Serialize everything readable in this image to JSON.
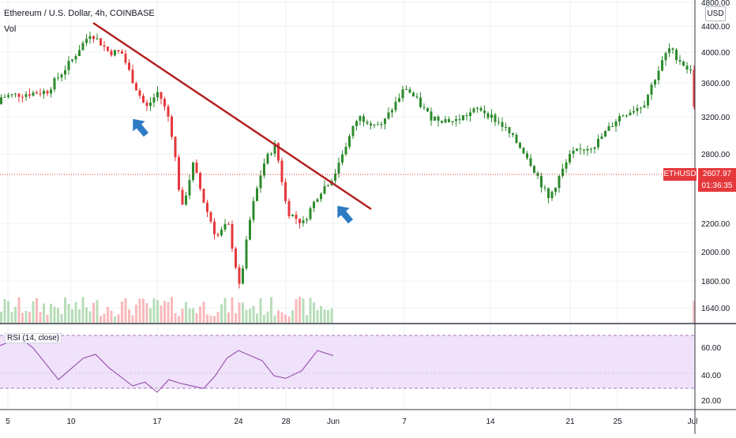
{
  "header": {
    "title": "Ethereum / U.S. Dollar, 4h, COINBASE",
    "volume_label": "Vol",
    "currency": "USD"
  },
  "price_tag": {
    "symbol": "ETHUSD",
    "price": "2607.97",
    "countdown": "01:36:35"
  },
  "rsi": {
    "label": "RSI (14, close)",
    "ticks": [
      "60.00",
      "40.00",
      "20.00"
    ]
  },
  "colors": {
    "up": "#2e8b2e",
    "down": "#e5383b",
    "trendline": "#b22222",
    "arrow": "#2e7bc4",
    "rsi_line": "#8e3fa3",
    "rsi_band": "#efe2fa"
  },
  "chart_data": [
    {
      "type": "candlestick",
      "title": "Ethereum / U.S. Dollar, 4h, COINBASE",
      "x_tick_labels": [
        "5",
        "10",
        "17",
        "24",
        "28",
        "Jun",
        "7",
        "14",
        "21",
        "25",
        "Jul"
      ],
      "y_tick_labels": [
        "4800.00",
        "4400.00",
        "4000.00",
        "3600.00",
        "3200.00",
        "2800.00",
        "2200.00",
        "2000.00",
        "1800.00",
        "1640.00"
      ],
      "series": [
        {
          "values": [
            [
              0,
              3350
            ],
            [
              5,
              3450
            ],
            [
              8,
              3500
            ],
            [
              10,
              3900
            ],
            [
              11.5,
              4300
            ],
            [
              13,
              4000
            ],
            [
              14,
              4000
            ],
            [
              15,
              3600
            ],
            [
              16,
              3300
            ],
            [
              17,
              3500
            ],
            [
              18,
              3150
            ],
            [
              19,
              2300
            ],
            [
              20,
              2700
            ],
            [
              21,
              2350
            ],
            [
              22,
              2100
            ],
            [
              23,
              2200
            ],
            [
              24,
              1750
            ],
            [
              25,
              2300
            ],
            [
              26,
              2700
            ],
            [
              27,
              2900
            ],
            [
              28,
              2300
            ],
            [
              29,
              2200
            ],
            [
              30,
              2450
            ],
            [
              31,
              2607.97
            ],
            [
              33,
              3200
            ],
            [
              35,
              3100
            ],
            [
              37,
              3550
            ],
            [
              39,
              3200
            ],
            [
              41,
              3150
            ],
            [
              43,
              3300
            ],
            [
              45,
              3100
            ],
            [
              47,
              2800
            ],
            [
              49,
              2400
            ],
            [
              51,
              2800
            ],
            [
              53,
              2900
            ],
            [
              55,
              3200
            ],
            [
              57,
              3350
            ],
            [
              59,
              4050
            ],
            [
              61,
              3700
            ],
            [
              63,
              4050
            ],
            [
              64.5,
              3500
            ]
          ]
        }
      ],
      "annotations": [
        "trendline",
        "arrow",
        "arrow"
      ]
    },
    {
      "type": "line",
      "title": "RSI (14, close)",
      "y_tick_labels": [
        "60.00",
        "40.00",
        "20.00"
      ],
      "series": [
        {
          "values": [
            [
              0,
              58
            ],
            [
              4,
              62
            ],
            [
              6,
              68
            ],
            [
              7,
              60
            ],
            [
              9,
              35
            ],
            [
              11,
              52
            ],
            [
              12,
              55
            ],
            [
              13,
              45
            ],
            [
              15,
              30
            ],
            [
              16,
              33
            ],
            [
              17,
              25
            ],
            [
              18,
              35
            ],
            [
              19,
              32
            ],
            [
              21,
              28
            ],
            [
              22,
              38
            ],
            [
              23,
              52
            ],
            [
              24,
              58
            ],
            [
              26,
              50
            ],
            [
              27,
              38
            ],
            [
              28,
              36
            ],
            [
              29,
              42
            ],
            [
              30,
              58
            ],
            [
              31,
              54
            ]
          ]
        }
      ]
    }
  ]
}
